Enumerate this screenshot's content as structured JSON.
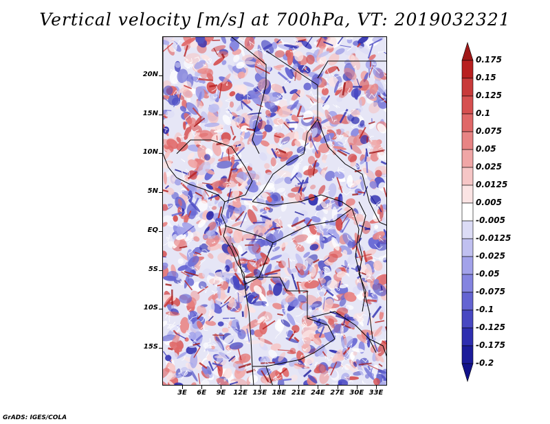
{
  "title": "Vertical velocity [m/s] at 700hPa, VT: 2019032321",
  "credit": "GrADS: IGES/COLA",
  "map": {
    "lat_labels": [
      "20N",
      "15N",
      "10N",
      "5N",
      "EQ",
      "5S",
      "10S",
      "15S"
    ],
    "lon_labels": [
      "3E",
      "6E",
      "9E",
      "12E",
      "15E",
      "18E",
      "21E",
      "24E",
      "27E",
      "30E",
      "33E"
    ]
  },
  "colorbar": {
    "levels": [
      "0.175",
      "0.15",
      "0.125",
      "0.1",
      "0.075",
      "0.05",
      "0.025",
      "0.0125",
      "0.005",
      "-0.005",
      "-0.0125",
      "-0.025",
      "-0.05",
      "-0.075",
      "-0.1",
      "-0.125",
      "-0.175",
      "-0.2"
    ],
    "colors": [
      "#a01818",
      "#b82020",
      "#c83a3a",
      "#d65050",
      "#e06868",
      "#e88484",
      "#f0a6a6",
      "#f6c6c6",
      "#fbe4e4",
      "#ffffff",
      "#dcdcf6",
      "#c0c0f0",
      "#a2a2ea",
      "#8484e0",
      "#6464d2",
      "#4848c2",
      "#2e2eb0",
      "#1c1c9a",
      "#12128a"
    ]
  }
}
